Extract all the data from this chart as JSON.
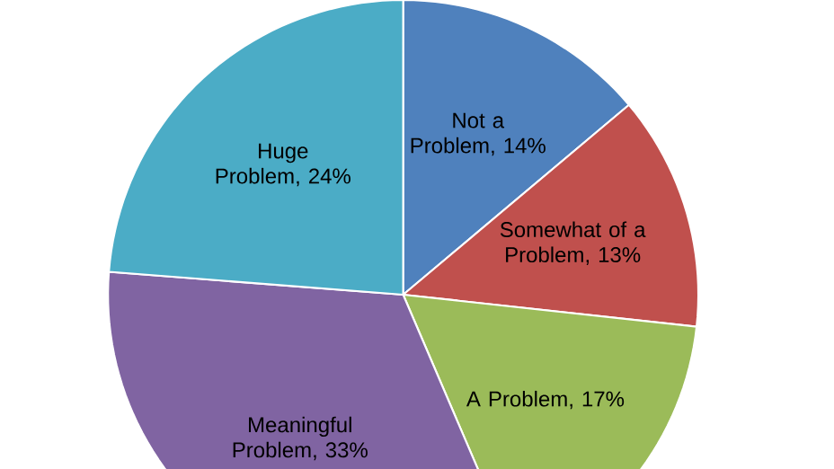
{
  "chart_data": {
    "type": "pie",
    "categories": [
      "Not a Problem",
      "Somewhat of a Problem",
      "A Problem",
      "Meaningful Problem",
      "Huge Problem"
    ],
    "values": [
      14,
      13,
      17,
      33,
      24
    ],
    "value_labels": [
      ", 14%",
      ", 13%",
      ", 17%",
      ", 33%",
      ", 24%"
    ],
    "colors": [
      "#4f81bd",
      "#c0504d",
      "#9bbb59",
      "#8064a2",
      "#4bacc6"
    ]
  }
}
